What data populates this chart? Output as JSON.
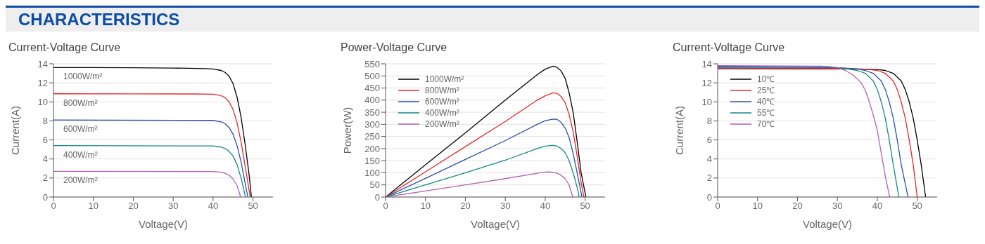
{
  "chart_data": [
    {
      "type": "line",
      "title": "Current-Voltage Curve",
      "annotations": [
        "CHARACTERISTICS"
      ],
      "xlabel": "Voltage(V)",
      "ylabel": "Current(A)",
      "xlim": [
        0,
        55
      ],
      "xticks": [
        0,
        10,
        20,
        30,
        40,
        50
      ],
      "ylim": [
        0,
        14
      ],
      "yticks": [
        0,
        2,
        4,
        6,
        8,
        10,
        12,
        14
      ],
      "grid": "y",
      "legend": false,
      "marker": "none",
      "line_style": "solid",
      "series": [
        {
          "name": "1000W/m²",
          "color": "#000000",
          "x": [
            0,
            10,
            20,
            30,
            38,
            40,
            42,
            43,
            44,
            45,
            46,
            47,
            48,
            49,
            49.6
          ],
          "values": [
            13.6,
            13.6,
            13.58,
            13.55,
            13.5,
            13.45,
            13.3,
            13.1,
            12.7,
            11.9,
            10.5,
            8.4,
            5.6,
            2.4,
            0
          ]
        },
        {
          "name": "800W/m²",
          "color": "#e8262a",
          "x": [
            0,
            20,
            35,
            40,
            42,
            43,
            44,
            45,
            46,
            47,
            48,
            49.3
          ],
          "values": [
            10.85,
            10.84,
            10.83,
            10.8,
            10.65,
            10.45,
            10,
            9.2,
            7.8,
            5.8,
            3.3,
            0
          ]
        },
        {
          "name": "600W/m²",
          "color": "#2a4fa8",
          "x": [
            0,
            40,
            42,
            43,
            44,
            45,
            46,
            47,
            48,
            48.7
          ],
          "values": [
            8.1,
            8.05,
            7.9,
            7.7,
            7.3,
            6.6,
            5.4,
            3.7,
            1.5,
            0
          ]
        },
        {
          "name": "400W/m²",
          "color": "#138a80",
          "x": [
            0,
            40,
            42,
            43,
            44,
            45,
            46,
            47,
            48.1
          ],
          "values": [
            5.4,
            5.37,
            5.25,
            5.1,
            4.8,
            4.3,
            3.4,
            2,
            0
          ]
        },
        {
          "name": "200W/m²",
          "color": "#b25fb8",
          "x": [
            0,
            40,
            42,
            43,
            44,
            45,
            46,
            46.9
          ],
          "values": [
            2.7,
            2.68,
            2.6,
            2.5,
            2.3,
            1.9,
            1.2,
            0
          ]
        }
      ]
    },
    {
      "type": "line",
      "title": "Power-Voltage Curve",
      "xlabel": "Voltage(V)",
      "ylabel": "Power(W)",
      "xlim": [
        0,
        55
      ],
      "xticks": [
        0,
        10,
        20,
        30,
        40,
        50
      ],
      "ylim": [
        0,
        550
      ],
      "yticks": [
        0,
        50,
        100,
        150,
        200,
        250,
        300,
        350,
        400,
        450,
        500,
        550
      ],
      "grid": "y",
      "legend": "top left",
      "marker": "none",
      "line_style": "solid",
      "series": [
        {
          "name": "1000W/m²",
          "color": "#000000",
          "x": [
            0,
            10,
            20,
            30,
            38,
            40,
            42,
            43,
            44,
            45,
            46,
            47,
            48,
            49,
            50.2
          ],
          "values": [
            0,
            133,
            265,
            400,
            505,
            528,
            540,
            535,
            520,
            490,
            430,
            350,
            230,
            100,
            0
          ]
        },
        {
          "name": "800W/m²",
          "color": "#e8262a",
          "x": [
            0,
            10,
            20,
            30,
            38,
            40,
            42,
            43,
            44,
            45,
            46,
            47,
            48,
            49,
            49.7
          ],
          "values": [
            0,
            104,
            208,
            312,
            400,
            418,
            430,
            428,
            415,
            390,
            340,
            270,
            170,
            60,
            0
          ]
        },
        {
          "name": "600W/m²",
          "color": "#2a4fa8",
          "x": [
            0,
            10,
            20,
            30,
            38,
            40,
            42,
            43,
            44,
            45,
            46,
            47,
            48,
            49.2
          ],
          "values": [
            0,
            77,
            155,
            233,
            300,
            315,
            322,
            320,
            308,
            285,
            245,
            180,
            100,
            0
          ]
        },
        {
          "name": "400W/m²",
          "color": "#138a80",
          "x": [
            0,
            10,
            20,
            30,
            38,
            40,
            42,
            43,
            44,
            45,
            46,
            47,
            48,
            48.5
          ],
          "values": [
            0,
            50,
            100,
            152,
            200,
            210,
            213,
            210,
            200,
            183,
            150,
            100,
            40,
            0
          ]
        },
        {
          "name": "200W/m²",
          "color": "#b25fb8",
          "x": [
            0,
            10,
            20,
            30,
            38,
            40,
            41,
            42,
            43,
            44,
            45,
            46,
            46.9
          ],
          "values": [
            0,
            25,
            50,
            76,
            98,
            103,
            104,
            102,
            98,
            90,
            76,
            50,
            0
          ]
        }
      ]
    },
    {
      "type": "line",
      "title": "Current-Voltage Curve",
      "xlabel": "Voltage(V)",
      "ylabel": "Current(A)",
      "xlim": [
        0,
        55
      ],
      "xticks": [
        0,
        10,
        20,
        30,
        40,
        50
      ],
      "ylim": [
        0,
        14
      ],
      "yticks": [
        0,
        2,
        4,
        6,
        8,
        10,
        12,
        14
      ],
      "grid": "y",
      "legend": "top left",
      "marker": "none",
      "line_style": "solid",
      "series": [
        {
          "name": "10℃",
          "color": "#000000",
          "x": [
            0,
            35,
            40,
            42,
            44,
            46,
            47,
            48,
            49,
            50,
            51,
            52.1
          ],
          "values": [
            13.5,
            13.45,
            13.4,
            13.3,
            13,
            12.2,
            11.3,
            10,
            8.3,
            6,
            3.4,
            0
          ]
        },
        {
          "name": "25℃",
          "color": "#e8262a",
          "x": [
            0,
            33,
            38,
            40,
            42,
            44,
            45,
            46,
            47,
            48,
            49,
            50
          ],
          "values": [
            13.55,
            13.5,
            13.4,
            13.3,
            13,
            12.2,
            11.3,
            10,
            8.3,
            6,
            3.4,
            0
          ]
        },
        {
          "name": "40℃",
          "color": "#2a4fa8",
          "x": [
            0,
            30,
            35,
            37,
            39,
            41,
            42,
            43,
            44,
            45,
            46,
            47.7
          ],
          "values": [
            13.65,
            13.6,
            13.45,
            13.3,
            13,
            12.2,
            11.3,
            10,
            8.3,
            6,
            3.4,
            0
          ]
        },
        {
          "name": "55℃",
          "color": "#138a80",
          "x": [
            0,
            28,
            32,
            35,
            37,
            39,
            40,
            41,
            42,
            43,
            44,
            45.4
          ],
          "values": [
            13.75,
            13.7,
            13.5,
            13.3,
            13,
            12.2,
            11.3,
            10,
            8.3,
            6,
            3.4,
            0
          ]
        },
        {
          "name": "70℃",
          "color": "#b25fb8",
          "x": [
            0,
            26,
            30,
            32,
            34,
            36,
            37,
            38,
            39,
            40,
            41,
            42,
            43.1
          ],
          "values": [
            13.8,
            13.75,
            13.6,
            13.3,
            12.8,
            12,
            11.2,
            10,
            8.6,
            7,
            4.6,
            2.2,
            0
          ]
        }
      ]
    }
  ]
}
